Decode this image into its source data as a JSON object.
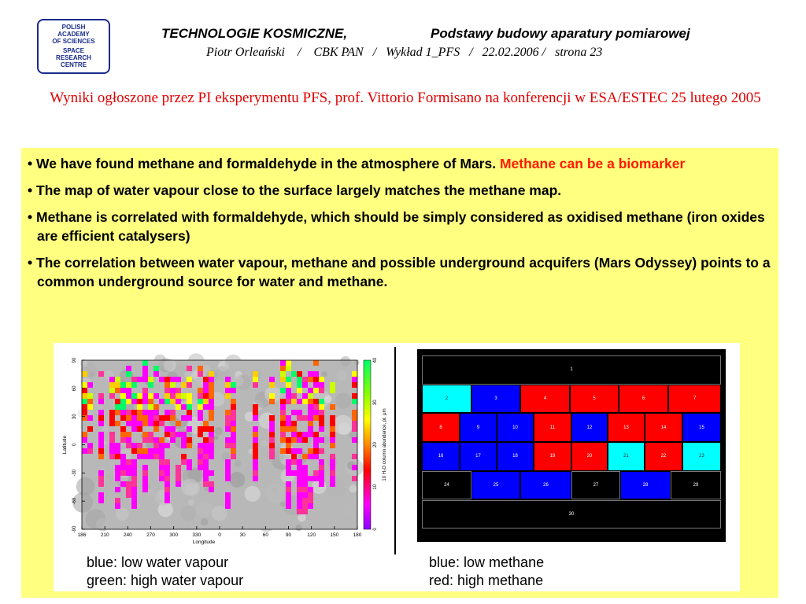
{
  "logo": {
    "lines": [
      "POLISH",
      "ACADEMY",
      "OF SCIENCES",
      "SPACE",
      "RESEARCH",
      "CENTRE"
    ]
  },
  "header": {
    "left": "TECHNOLOGIE KOSMICZNE,",
    "right": "Podstawy budowy aparatury pomiarowej",
    "line2": "Piotr Orleański    /    CBK PAN   /   Wykład 1_PFS   /   22.02.2006 /   strona 23"
  },
  "title": "Wyniki ogłoszone przez PI eksperymentu PFS, prof. Vittorio Formisano na konferencji w ESA/ESTEC 25 lutego 2005",
  "bullets": [
    {
      "text": "We have found methane and formaldehyde in the atmosphere of Mars. ",
      "highlight": "Methane can be a biomarker"
    },
    {
      "text": "The map of water vapour close to the surface largely matches the methane map.",
      "highlight": ""
    },
    {
      "text": "Methane is correlated with formaldehyde, which should be simply considered as oxidised methane (iron oxides are efficient catalysers)",
      "highlight": ""
    },
    {
      "text": "The correlation between water vapour, methane and possible underground acquifers (Mars Odyssey) points to a common underground source for water and methane.",
      "highlight": ""
    }
  ],
  "water_map": {
    "y_label": "Latitude",
    "x_label": "Longitude",
    "y_ticks": [
      "90",
      "60",
      "30",
      "0",
      "-30",
      "-60",
      "-90"
    ],
    "x_ticks": [
      "186",
      "210",
      "240",
      "270",
      "300",
      "330",
      "0",
      "30",
      "60",
      "90",
      "120",
      "150",
      "180"
    ],
    "colorbar_ticks": [
      "40",
      "30",
      "20",
      "10",
      "0"
    ],
    "colorbar_label": "10 H₂O column abundance, pr. μm"
  },
  "methane_map": {
    "rows": [
      [
        {
          "n": "1",
          "c": "black"
        }
      ],
      [
        {
          "n": "2",
          "c": "cyan"
        },
        {
          "n": "3",
          "c": "blue"
        },
        {
          "n": "4",
          "c": "red"
        },
        {
          "n": "5",
          "c": "red"
        },
        {
          "n": "6",
          "c": "red"
        },
        {
          "n": "7",
          "c": "red"
        }
      ],
      [
        {
          "n": "8",
          "c": "red"
        },
        {
          "n": "9",
          "c": "blue"
        },
        {
          "n": "10",
          "c": "blue"
        },
        {
          "n": "11",
          "c": "red"
        },
        {
          "n": "12",
          "c": "blue"
        },
        {
          "n": "13",
          "c": "red"
        },
        {
          "n": "14",
          "c": "red"
        },
        {
          "n": "15",
          "c": "blue"
        }
      ],
      [
        {
          "n": "16",
          "c": "blue"
        },
        {
          "n": "17",
          "c": "blue"
        },
        {
          "n": "18",
          "c": "blue"
        },
        {
          "n": "19",
          "c": "red"
        },
        {
          "n": "20",
          "c": "red"
        },
        {
          "n": "21",
          "c": "cyan"
        },
        {
          "n": "22",
          "c": "red"
        },
        {
          "n": "23",
          "c": "cyan"
        }
      ],
      [
        {
          "n": "24",
          "c": "black"
        },
        {
          "n": "25",
          "c": "blue"
        },
        {
          "n": "26",
          "c": "blue"
        },
        {
          "n": "27",
          "c": "black"
        },
        {
          "n": "28",
          "c": "blue"
        },
        {
          "n": "29",
          "c": "black"
        }
      ],
      [
        {
          "n": "30",
          "c": "black"
        }
      ]
    ]
  },
  "captions": {
    "left1": "blue: low water vapour",
    "left2": "green: high water vapour",
    "right1": "blue: low methane",
    "right2": "red: high methane"
  },
  "colors": {
    "title_red": "#e00000",
    "highlight_red": "#ff1a00",
    "panel_yellow": "#ffff80",
    "logo_blue": "#1a2b8c"
  }
}
